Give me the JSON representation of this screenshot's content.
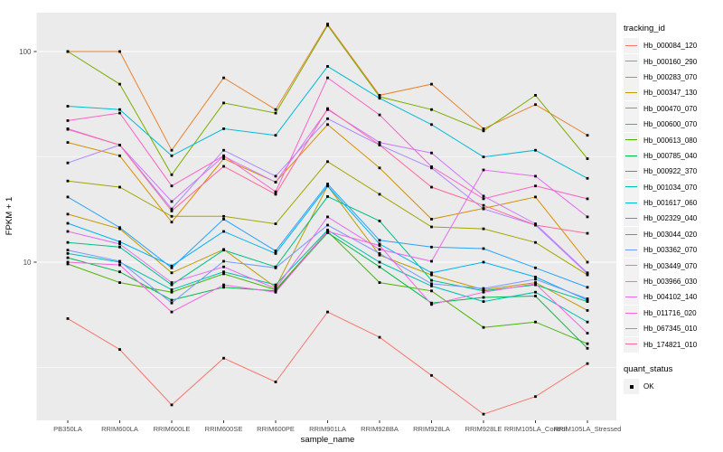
{
  "figure": {
    "background": "#FFFFFF",
    "panel_background": "#EBEBEB",
    "grid_color": "#FFFFFF",
    "point_color": "#000000",
    "tick_label_color": "#4D4D4D",
    "axis_title_color": "#000000",
    "legend_key_background": "#F2F2F2"
  },
  "axes": {
    "x_title": "sample_name",
    "y_title": "FPKM + 1",
    "y_ticks": [
      {
        "label": "100",
        "value": 100
      },
      {
        "label": "10",
        "value": 10
      }
    ]
  },
  "legend": {
    "tracking_title": "tracking_id",
    "quant_title": "quant_status",
    "quant_items": [
      {
        "label": "OK",
        "marker": "black-square"
      }
    ]
  },
  "chart_data": {
    "type": "line",
    "title": "",
    "xlabel": "sample_name",
    "ylabel": "FPKM + 1",
    "y_scale": "log10",
    "ylim": [
      1.8,
      155
    ],
    "grid": true,
    "legend_position": "right",
    "marker": "small-black-square",
    "x_categories": [
      "PB350LA",
      "RRIM600LA",
      "RRIM600LE",
      "RRIM600SE",
      "RRIM600PE",
      "RRIM901LA",
      "RRIM928BA",
      "RRIM928LA",
      "RRIM928LE",
      "RRIM105LA_Control",
      "RRIM105LA_Stressed"
    ],
    "series": [
      {
        "name": "Hb_000084_120",
        "color": "#F8766D",
        "values": [
          5.4,
          3.85,
          2.1,
          3.5,
          2.7,
          5.8,
          4.4,
          2.9,
          1.9,
          2.3,
          3.3
        ]
      },
      {
        "name": "Hb_000160_290",
        "color": "#EA8331",
        "values": [
          100,
          100,
          34,
          75,
          53,
          135,
          62,
          70,
          43,
          56,
          40
        ]
      },
      {
        "name": "Hb_000283_070",
        "color": "#D89000",
        "values": [
          37,
          32,
          15.5,
          31,
          24,
          45,
          28,
          16,
          18,
          20.4,
          10
        ]
      },
      {
        "name": "Hb_000347_130",
        "color": "#C09B00",
        "values": [
          16.9,
          14.4,
          8.9,
          11.5,
          7.6,
          23,
          10.8,
          8.7,
          7.4,
          8.0,
          5.9
        ]
      },
      {
        "name": "Hb_000470_070",
        "color": "#A3A500",
        "values": [
          24.3,
          22.7,
          16.5,
          16.5,
          15.2,
          30,
          21,
          14.7,
          14.4,
          12.4,
          8.7
        ]
      },
      {
        "name": "Hb_000600_070",
        "color": "#7CAE00",
        "values": [
          100,
          70,
          26,
          57,
          51,
          133,
          61,
          53,
          42,
          62,
          31
        ]
      },
      {
        "name": "Hb_000613_080",
        "color": "#49B500",
        "values": [
          9.8,
          8.0,
          7.2,
          8.8,
          7.4,
          14.0,
          8.0,
          7.3,
          4.9,
          5.2,
          4.1
        ]
      },
      {
        "name": "Hb_000785_040",
        "color": "#00BB4E",
        "values": [
          10.5,
          9.0,
          6.6,
          7.6,
          7.3,
          13.8,
          9.5,
          6.4,
          6.8,
          6.9,
          3.9
        ]
      },
      {
        "name": "Hb_000922_370",
        "color": "#00C087",
        "values": [
          12.4,
          11.8,
          7.8,
          11.4,
          9.5,
          20.5,
          15.7,
          8.2,
          7.3,
          7.8,
          6.5
        ]
      },
      {
        "name": "Hb_001034_070",
        "color": "#00C0B2",
        "values": [
          11.0,
          10.0,
          7.4,
          9.0,
          7.8,
          14.2,
          10.0,
          7.7,
          6.5,
          7.2,
          5.2
        ]
      },
      {
        "name": "Hb_001617_060",
        "color": "#00BCD8",
        "values": [
          55,
          53,
          32,
          43,
          40,
          85,
          60,
          45,
          31.6,
          34,
          25
        ]
      },
      {
        "name": "Hb_002329_040",
        "color": "#00B3F2",
        "values": [
          15.3,
          12.5,
          9.6,
          14,
          11,
          23,
          12.2,
          8.9,
          10,
          8.5,
          6.6
        ]
      },
      {
        "name": "Hb_003044_020",
        "color": "#29A3FF",
        "values": [
          20.4,
          14.6,
          9.4,
          16,
          11.3,
          23.5,
          12.7,
          11.8,
          11.6,
          9.4,
          7.6
        ]
      },
      {
        "name": "Hb_003362_070",
        "color": "#7997FF",
        "values": [
          11.4,
          10.1,
          6.4,
          10.1,
          9.4,
          15.0,
          11.0,
          7.9,
          7.5,
          8.3,
          6.7
        ]
      },
      {
        "name": "Hb_003449_070",
        "color": "#AC88FF",
        "values": [
          29.6,
          36,
          17.9,
          34,
          25.6,
          48,
          36,
          28,
          17.9,
          15,
          8.8
        ]
      },
      {
        "name": "Hb_003966_030",
        "color": "#CF78FF",
        "values": [
          43,
          36,
          19.4,
          31.8,
          24,
          53,
          37,
          33,
          20.6,
          15.2,
          8.9
        ]
      },
      {
        "name": "Hb_004102_140",
        "color": "#E76BF3",
        "values": [
          14,
          12.2,
          8.0,
          9.5,
          7.5,
          16.4,
          11.5,
          10.1,
          27.4,
          25.6,
          16.4
        ]
      },
      {
        "name": "Hb_011716_020",
        "color": "#F863DF",
        "values": [
          10.0,
          9.7,
          5.8,
          7.8,
          7.2,
          14.0,
          12.0,
          6.3,
          7.2,
          7.9,
          4.6
        ]
      },
      {
        "name": "Hb_067345_010",
        "color": "#FF61C7",
        "values": [
          47,
          51,
          23,
          32,
          21.6,
          75,
          50,
          28.4,
          20,
          23,
          20
        ]
      },
      {
        "name": "Hb_174821_010",
        "color": "#FF689F",
        "values": [
          42.7,
          36,
          17.5,
          28.5,
          21,
          53.6,
          36,
          22.7,
          18.6,
          15,
          13.7
        ]
      }
    ]
  }
}
